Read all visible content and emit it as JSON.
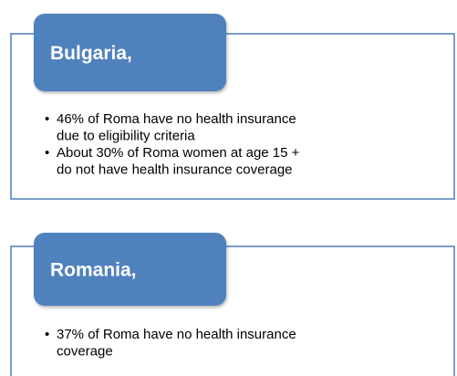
{
  "blocks": [
    {
      "title": "Bulgaria,",
      "bullets": [
        [
          "46% of Roma have no health insurance",
          "due to eligibility criteria"
        ],
        [
          "About 30% of Roma women at age 15 +",
          "do not have health insurance coverage"
        ]
      ]
    },
    {
      "title": "Romania,",
      "bullets": [
        [
          "37% of Roma have no health insurance",
          "coverage"
        ]
      ]
    }
  ]
}
